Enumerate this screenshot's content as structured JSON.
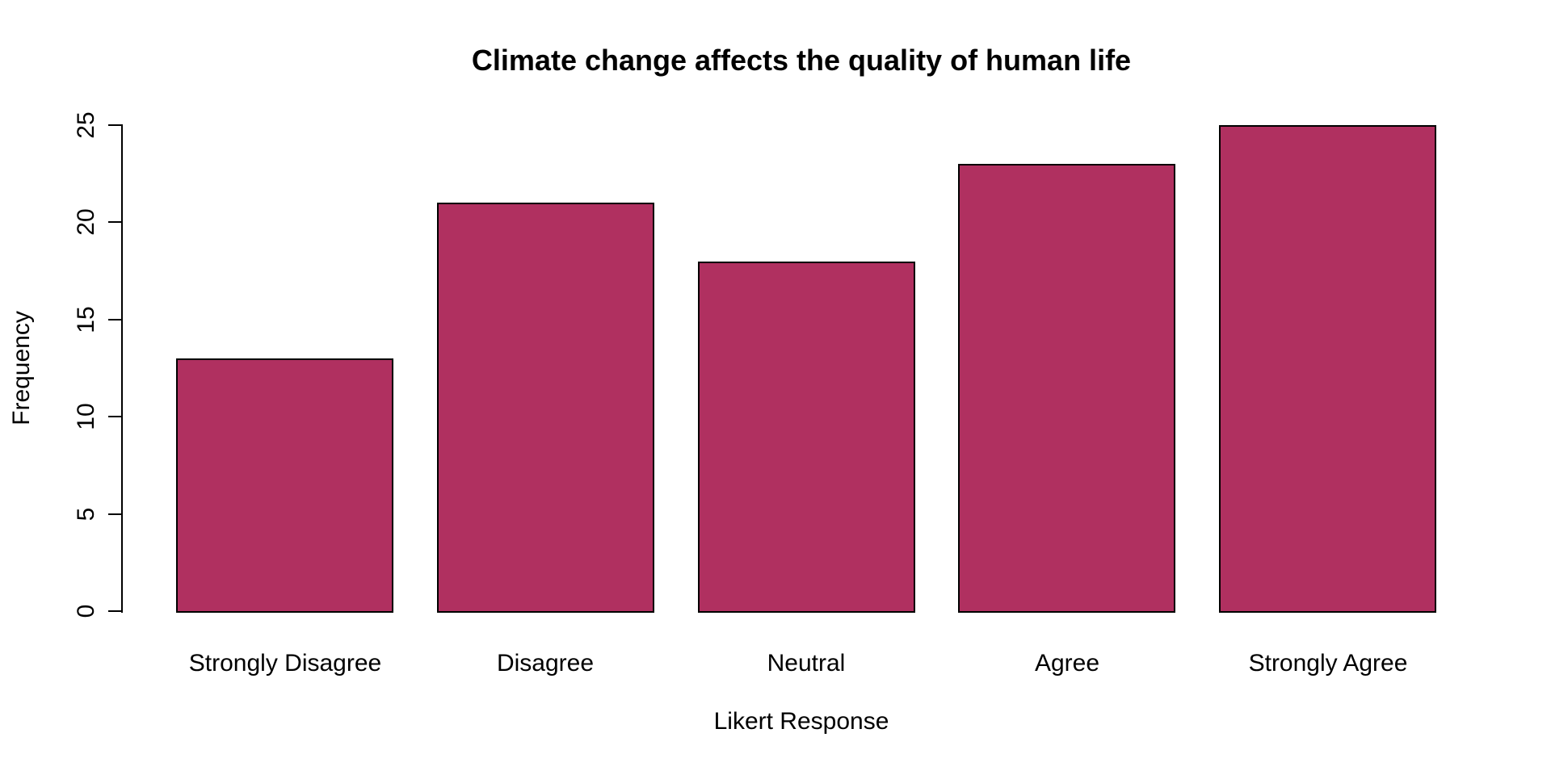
{
  "chart_data": {
    "type": "bar",
    "title": "Climate change affects the quality of human life",
    "xlabel": "Likert Response",
    "ylabel": "Frequency",
    "categories": [
      "Strongly Disagree",
      "Disagree",
      "Neutral",
      "Agree",
      "Strongly Agree"
    ],
    "values": [
      13,
      21,
      18,
      23,
      25
    ],
    "yticks": [
      0,
      5,
      10,
      15,
      20,
      25
    ],
    "ylim": [
      0,
      25
    ],
    "grid": "off",
    "legend": "none",
    "bar_color": "#B03060",
    "bar_border_color": "#000000",
    "axis_color": "#000000",
    "text_color": "#000000",
    "background_color": "#FFFFFF"
  }
}
